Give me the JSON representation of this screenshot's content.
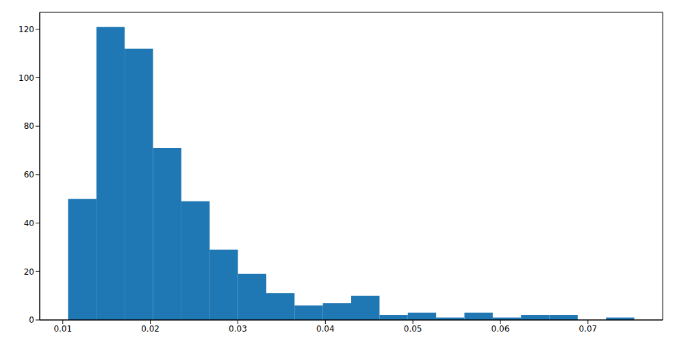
{
  "chart_data": {
    "type": "histogram",
    "bins": [
      0.0106,
      0.01384,
      0.01707,
      0.02031,
      0.02354,
      0.02678,
      0.03001,
      0.03325,
      0.03648,
      0.03972,
      0.04295,
      0.04619,
      0.04942,
      0.05266,
      0.05589,
      0.05913,
      0.06236,
      0.0656,
      0.06883,
      0.07207,
      0.0753
    ],
    "counts": [
      50,
      121,
      112,
      71,
      49,
      29,
      19,
      11,
      6,
      7,
      10,
      2,
      3,
      1,
      3,
      1,
      2,
      2,
      0,
      1
    ],
    "color": "#1f77b4",
    "xlim": [
      0.00736,
      0.07854
    ],
    "xticks": [
      0.01,
      0.02,
      0.03,
      0.04,
      0.05,
      0.06,
      0.07
    ],
    "ylim": [
      0,
      127
    ],
    "yticks": [
      0,
      20,
      40,
      60,
      80,
      100,
      120
    ]
  }
}
